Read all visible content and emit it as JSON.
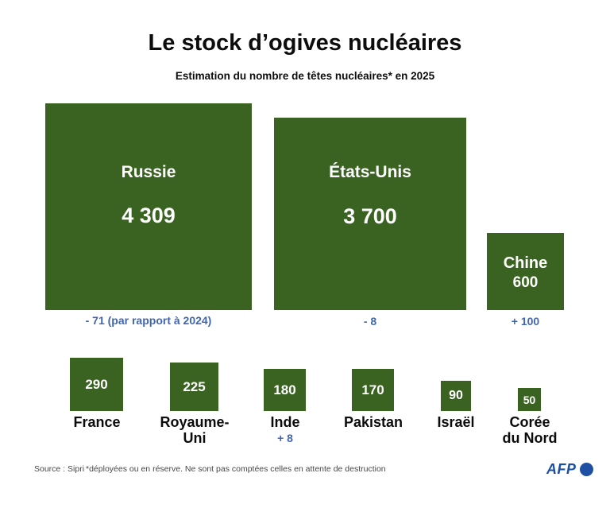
{
  "header": {
    "title": "Le stock d’ogives nucléaires",
    "subtitle": "Estimation du nombre de têtes nucléaires* en 2025"
  },
  "chart_data": {
    "type": "proportional-area-squares",
    "title": "Le stock d’ogives nucléaires",
    "subtitle": "Estimation du nombre de têtes nucléaires* en 2025",
    "year": "2025",
    "layout": "squares bottom-aligned in two rows, area proportional to value",
    "square_color": "#3a6322",
    "countries": [
      {
        "name": "Russie",
        "value": 4309,
        "value_label": "4 309",
        "change": -71,
        "change_label": "- 71 (par rapport à 2024)"
      },
      {
        "name": "États-Unis",
        "value": 3700,
        "value_label": "3 700",
        "change": -8,
        "change_label": "- 8"
      },
      {
        "name": "Chine",
        "value": 600,
        "value_label": "600",
        "change": 100,
        "change_label": "+ 100"
      },
      {
        "name": "France",
        "value": 290,
        "value_label": "290",
        "change": null,
        "change_label": ""
      },
      {
        "name": "Royaume-Uni",
        "value": 225,
        "value_label": "225",
        "change": null,
        "change_label": ""
      },
      {
        "name": "Inde",
        "value": 180,
        "value_label": "180",
        "change": 8,
        "change_label": "+ 8"
      },
      {
        "name": "Pakistan",
        "value": 170,
        "value_label": "170",
        "change": null,
        "change_label": ""
      },
      {
        "name": "Israël",
        "value": 90,
        "value_label": "90",
        "change": null,
        "change_label": ""
      },
      {
        "name": "Corée du Nord",
        "value": 50,
        "value_label": "50",
        "change": null,
        "change_label": ""
      }
    ]
  },
  "footer": {
    "source": "Source : Sipri",
    "note": "*déployées ou en réserve. Ne sont pas comptées celles en attente de destruction",
    "logo_text": "AFP"
  },
  "colors": {
    "square_green": "#3a6322",
    "change_blue": "#4166b0",
    "afp_blue": "#1d4fa3",
    "title_black": "#0c0c0c",
    "footer_gray": "#474747"
  }
}
